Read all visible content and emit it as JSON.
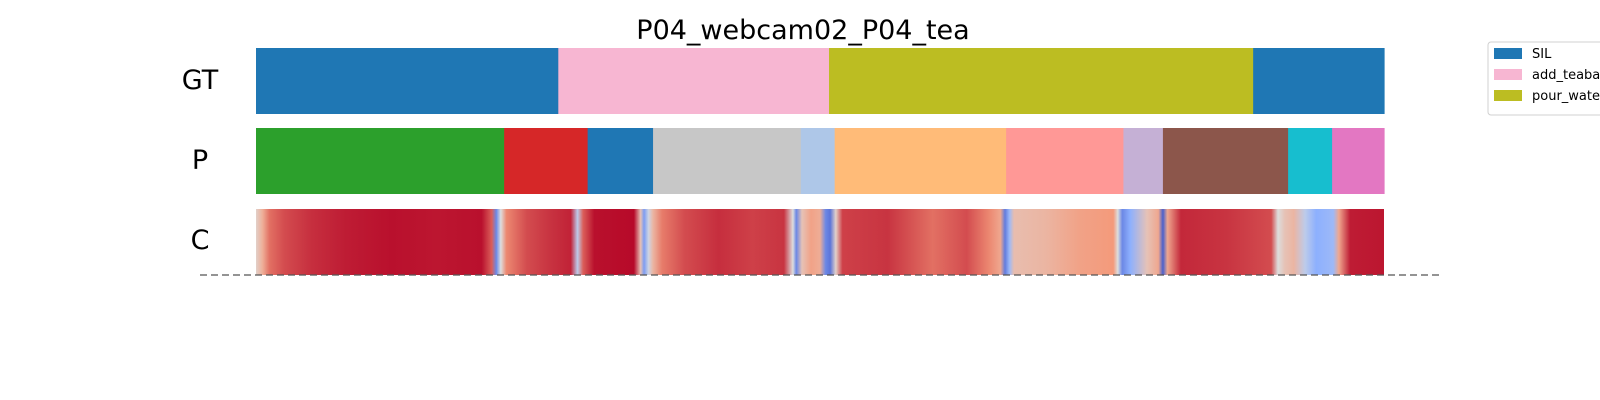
{
  "chart_data": {
    "type": "segmentation-timeline",
    "title": "P04_webcam02_P04_tea",
    "x_domain": [
      0,
      1
    ],
    "rows": [
      {
        "label": "GT",
        "segments": [
          {
            "start": 0.0,
            "end": 0.268,
            "label": "SIL",
            "color": "#1f77b4"
          },
          {
            "start": 0.268,
            "end": 0.508,
            "label": "add_teabag",
            "color": "#f7b6d2"
          },
          {
            "start": 0.508,
            "end": 0.884,
            "label": "pour_water",
            "color": "#bcbd22"
          },
          {
            "start": 0.884,
            "end": 1.0,
            "label": "SIL",
            "color": "#1f77b4"
          }
        ]
      },
      {
        "label": "P",
        "segments": [
          {
            "start": 0.0,
            "end": 0.22,
            "color": "#2ca02c"
          },
          {
            "start": 0.22,
            "end": 0.294,
            "color": "#d62728"
          },
          {
            "start": 0.294,
            "end": 0.352,
            "color": "#1f77b4"
          },
          {
            "start": 0.352,
            "end": 0.483,
            "color": "#c7c7c7"
          },
          {
            "start": 0.483,
            "end": 0.513,
            "color": "#aec7e8"
          },
          {
            "start": 0.513,
            "end": 0.665,
            "color": "#ffbb78"
          },
          {
            "start": 0.665,
            "end": 0.769,
            "color": "#ff9896"
          },
          {
            "start": 0.769,
            "end": 0.804,
            "color": "#c5b0d5"
          },
          {
            "start": 0.804,
            "end": 0.915,
            "color": "#8c564b"
          },
          {
            "start": 0.915,
            "end": 0.954,
            "color": "#17becf"
          },
          {
            "start": 0.954,
            "end": 1.0,
            "color": "#e377c2"
          }
        ]
      },
      {
        "label": "C",
        "colormap": "coolwarm",
        "value_range": [
          0,
          1
        ],
        "confidence_stops": [
          {
            "x": 0.0,
            "v": 0.55
          },
          {
            "x": 0.006,
            "v": 0.68
          },
          {
            "x": 0.012,
            "v": 0.82
          },
          {
            "x": 0.025,
            "v": 0.88
          },
          {
            "x": 0.05,
            "v": 0.93
          },
          {
            "x": 0.08,
            "v": 0.96
          },
          {
            "x": 0.12,
            "v": 0.98
          },
          {
            "x": 0.16,
            "v": 0.97
          },
          {
            "x": 0.2,
            "v": 0.98
          },
          {
            "x": 0.209,
            "v": 0.85
          },
          {
            "x": 0.213,
            "v": 0.15
          },
          {
            "x": 0.217,
            "v": 0.5
          },
          {
            "x": 0.222,
            "v": 0.78
          },
          {
            "x": 0.24,
            "v": 0.88
          },
          {
            "x": 0.26,
            "v": 0.92
          },
          {
            "x": 0.279,
            "v": 0.95
          },
          {
            "x": 0.285,
            "v": 0.4
          },
          {
            "x": 0.29,
            "v": 0.85
          },
          {
            "x": 0.3,
            "v": 0.98
          },
          {
            "x": 0.335,
            "v": 0.99
          },
          {
            "x": 0.341,
            "v": 0.6
          },
          {
            "x": 0.344,
            "v": 0.2
          },
          {
            "x": 0.348,
            "v": 0.45
          },
          {
            "x": 0.352,
            "v": 0.65
          },
          {
            "x": 0.36,
            "v": 0.8
          },
          {
            "x": 0.38,
            "v": 0.88
          },
          {
            "x": 0.41,
            "v": 0.93
          },
          {
            "x": 0.44,
            "v": 0.9
          },
          {
            "x": 0.468,
            "v": 0.92
          },
          {
            "x": 0.476,
            "v": 0.5
          },
          {
            "x": 0.479,
            "v": 0.15
          },
          {
            "x": 0.484,
            "v": 0.6
          },
          {
            "x": 0.492,
            "v": 0.72
          },
          {
            "x": 0.5,
            "v": 0.68
          },
          {
            "x": 0.505,
            "v": 0.15
          },
          {
            "x": 0.509,
            "v": 0.1
          },
          {
            "x": 0.514,
            "v": 0.55
          },
          {
            "x": 0.52,
            "v": 0.9
          },
          {
            "x": 0.56,
            "v": 0.92
          },
          {
            "x": 0.6,
            "v": 0.82
          },
          {
            "x": 0.63,
            "v": 0.88
          },
          {
            "x": 0.65,
            "v": 0.78
          },
          {
            "x": 0.66,
            "v": 0.7
          },
          {
            "x": 0.664,
            "v": 0.12
          },
          {
            "x": 0.668,
            "v": 0.3
          },
          {
            "x": 0.672,
            "v": 0.62
          },
          {
            "x": 0.7,
            "v": 0.65
          },
          {
            "x": 0.73,
            "v": 0.72
          },
          {
            "x": 0.76,
            "v": 0.75
          },
          {
            "x": 0.764,
            "v": 0.5
          },
          {
            "x": 0.768,
            "v": 0.15
          },
          {
            "x": 0.775,
            "v": 0.25
          },
          {
            "x": 0.79,
            "v": 0.6
          },
          {
            "x": 0.8,
            "v": 0.7
          },
          {
            "x": 0.804,
            "v": 0.05
          },
          {
            "x": 0.808,
            "v": 0.7
          },
          {
            "x": 0.82,
            "v": 0.94
          },
          {
            "x": 0.86,
            "v": 0.92
          },
          {
            "x": 0.9,
            "v": 0.88
          },
          {
            "x": 0.906,
            "v": 0.5
          },
          {
            "x": 0.912,
            "v": 0.6
          },
          {
            "x": 0.92,
            "v": 0.65
          },
          {
            "x": 0.93,
            "v": 0.4
          },
          {
            "x": 0.94,
            "v": 0.25
          },
          {
            "x": 0.955,
            "v": 0.3
          },
          {
            "x": 0.96,
            "v": 0.7
          },
          {
            "x": 0.97,
            "v": 0.96
          },
          {
            "x": 1.0,
            "v": 0.97
          }
        ]
      }
    ],
    "legend": {
      "position": "top-right",
      "entries": [
        {
          "label": "SIL",
          "color": "#1f77b4"
        },
        {
          "label": "add_teaba",
          "color": "#f7b6d2"
        },
        {
          "label": "pour_wate",
          "color": "#bcbd22"
        }
      ]
    }
  }
}
